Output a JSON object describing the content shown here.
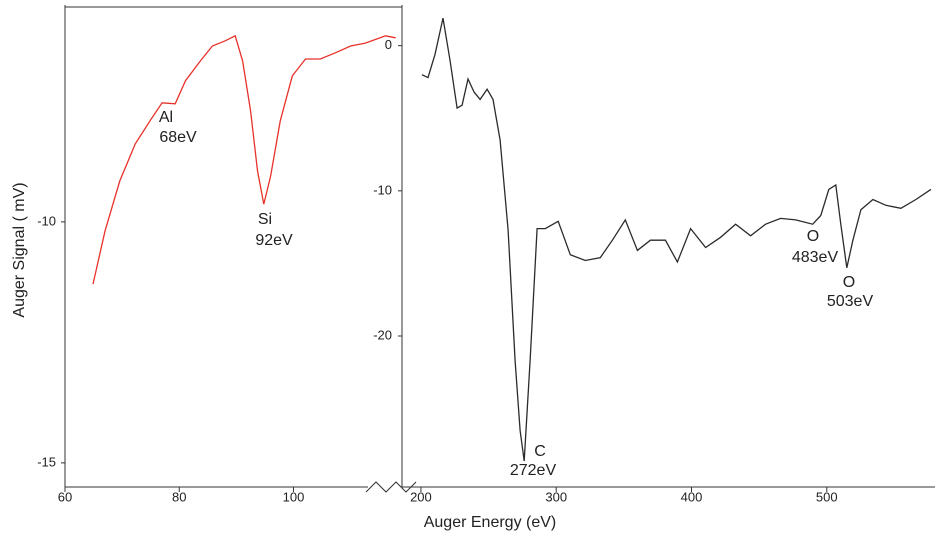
{
  "chart_data": [
    {
      "type": "line",
      "color": "#e8312a",
      "ylabel": "Auger Signal ( mV)",
      "xlabel": "Auger Energy (eV)",
      "x": [
        64.9,
        67.0,
        69.6,
        72.3,
        74.9,
        77.0,
        79.3,
        81.1,
        83.7,
        85.8,
        88.1,
        89.8,
        91.1,
        92.5,
        93.7,
        94.8,
        96.0,
        97.7,
        99.8,
        102.1,
        104.7,
        107.4,
        110.0,
        112.6,
        116.1,
        117.9
      ],
      "values": [
        -11.29,
        -10.19,
        -9.15,
        -8.38,
        -7.9,
        -7.53,
        -7.55,
        -7.07,
        -6.66,
        -6.35,
        -6.24,
        -6.14,
        -6.66,
        -7.7,
        -8.94,
        -9.63,
        -9.05,
        -7.9,
        -6.97,
        -6.62,
        -6.62,
        -6.49,
        -6.35,
        -6.29,
        -6.14,
        -6.18
      ],
      "xlim": [
        60,
        119
      ],
      "xticks": [
        60,
        80,
        100
      ],
      "ylim": [
        -15.5,
        -5.5
      ],
      "yticks": [
        -10,
        -15
      ],
      "annotations": [
        "Al",
        "68eV",
        "Si",
        "92eV"
      ]
    },
    {
      "type": "line",
      "color": "#2b2b2b",
      "x": [
        200.7,
        205.2,
        210.4,
        216.3,
        221.5,
        226.7,
        230.4,
        234.8,
        239.3,
        243.7,
        248.9,
        253.3,
        258.5,
        264.4,
        269.6,
        273.3,
        276.3,
        280.7,
        285.9,
        291.9,
        301.5,
        310.4,
        321.5,
        332.6,
        341.5,
        351.1,
        360.0,
        369.6,
        380.7,
        389.6,
        399.3,
        410.4,
        421.5,
        432.6,
        443.7,
        454.8,
        465.9,
        477.0,
        489.6,
        495.6,
        501.5,
        506.7,
        510.4,
        514.8,
        519.3,
        525.2,
        534.1,
        543.7,
        554.8,
        565.9,
        577.0
      ],
      "values": [
        -2.0,
        -2.2,
        -0.6,
        1.9,
        -1.0,
        -4.3,
        -4.1,
        -2.3,
        -3.2,
        -3.7,
        -3.0,
        -3.7,
        -6.5,
        -12.7,
        -21.7,
        -26.5,
        -28.6,
        -21.7,
        -12.6,
        -12.6,
        -12.1,
        -14.4,
        -14.8,
        -14.6,
        -13.4,
        -12.0,
        -14.1,
        -13.4,
        -13.4,
        -14.9,
        -12.6,
        -13.9,
        -13.2,
        -12.3,
        -13.1,
        -12.3,
        -11.9,
        -12.0,
        -12.3,
        -11.7,
        -9.9,
        -9.6,
        -12.3,
        -15.3,
        -13.4,
        -11.3,
        -10.6,
        -11.0,
        -11.2,
        -10.6,
        -9.9
      ],
      "xlim": [
        186,
        580
      ],
      "xticks": [
        200,
        300,
        400,
        500
      ],
      "ylim": [
        -30.4,
        2.8
      ],
      "yticks": [
        0,
        -10,
        -20
      ],
      "annotations": [
        "C",
        "272eV",
        "O",
        "483eV",
        "O",
        "503eV"
      ]
    }
  ]
}
